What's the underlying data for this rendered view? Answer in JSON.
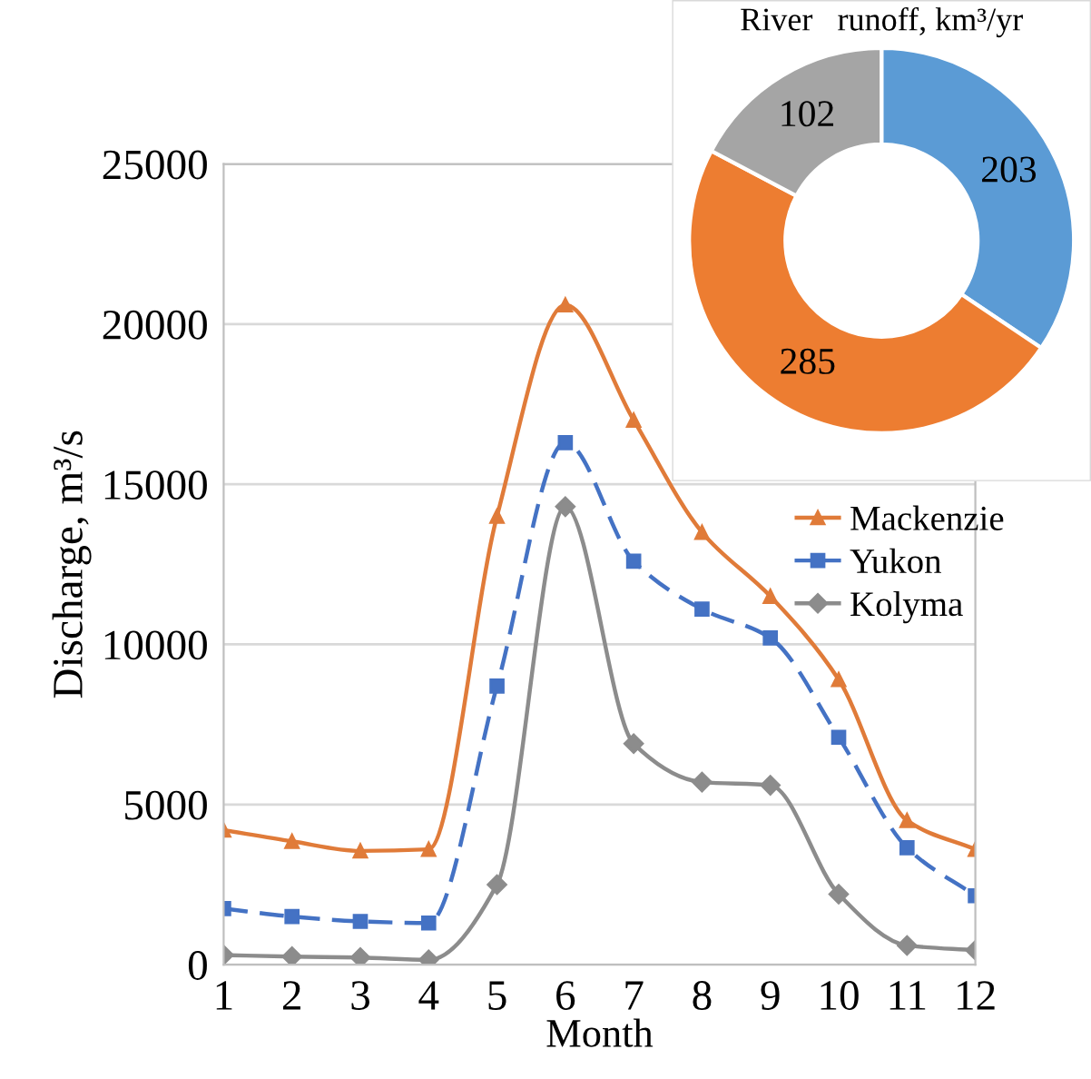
{
  "chart_data": [
    {
      "type": "line",
      "xlabel": "Month",
      "ylabel": "Discharge, m³/s",
      "x": [
        1,
        2,
        3,
        4,
        5,
        6,
        7,
        8,
        9,
        10,
        11,
        12
      ],
      "xlim": [
        1,
        12
      ],
      "xticks": [
        1,
        2,
        3,
        4,
        5,
        6,
        7,
        8,
        9,
        10,
        11,
        12
      ],
      "ylim": [
        0,
        25000
      ],
      "yticks": [
        0,
        5000,
        10000,
        15000,
        20000,
        25000
      ],
      "grid": "y",
      "legend": "right",
      "series": [
        {
          "name": "Mackenzie",
          "color": "#e07b39",
          "marker": "triangle",
          "line_style": "solid",
          "values": [
            4200,
            3850,
            3550,
            3600,
            14000,
            20600,
            17000,
            13500,
            11500,
            8900,
            4500,
            3600
          ]
        },
        {
          "name": "Yukon",
          "color": "#4472c4",
          "marker": "square",
          "line_style": "dashed",
          "values": [
            1750,
            1500,
            1350,
            1300,
            8700,
            16300,
            12600,
            11100,
            10200,
            7100,
            3650,
            2150
          ]
        },
        {
          "name": "Kolyma",
          "color": "#8c8c8c",
          "marker": "diamond",
          "line_style": "solid",
          "values": [
            300,
            250,
            220,
            150,
            2500,
            14300,
            6900,
            5700,
            5600,
            2200,
            600,
            450
          ]
        }
      ]
    },
    {
      "type": "donut",
      "title": "River   runoff, km³/yr",
      "categories": [
        null,
        null,
        null
      ],
      "values": [
        203,
        285,
        102
      ],
      "colors": [
        "#5b9bd5",
        "#ed7d31",
        "#a5a5a5"
      ],
      "data_labels": true
    }
  ]
}
